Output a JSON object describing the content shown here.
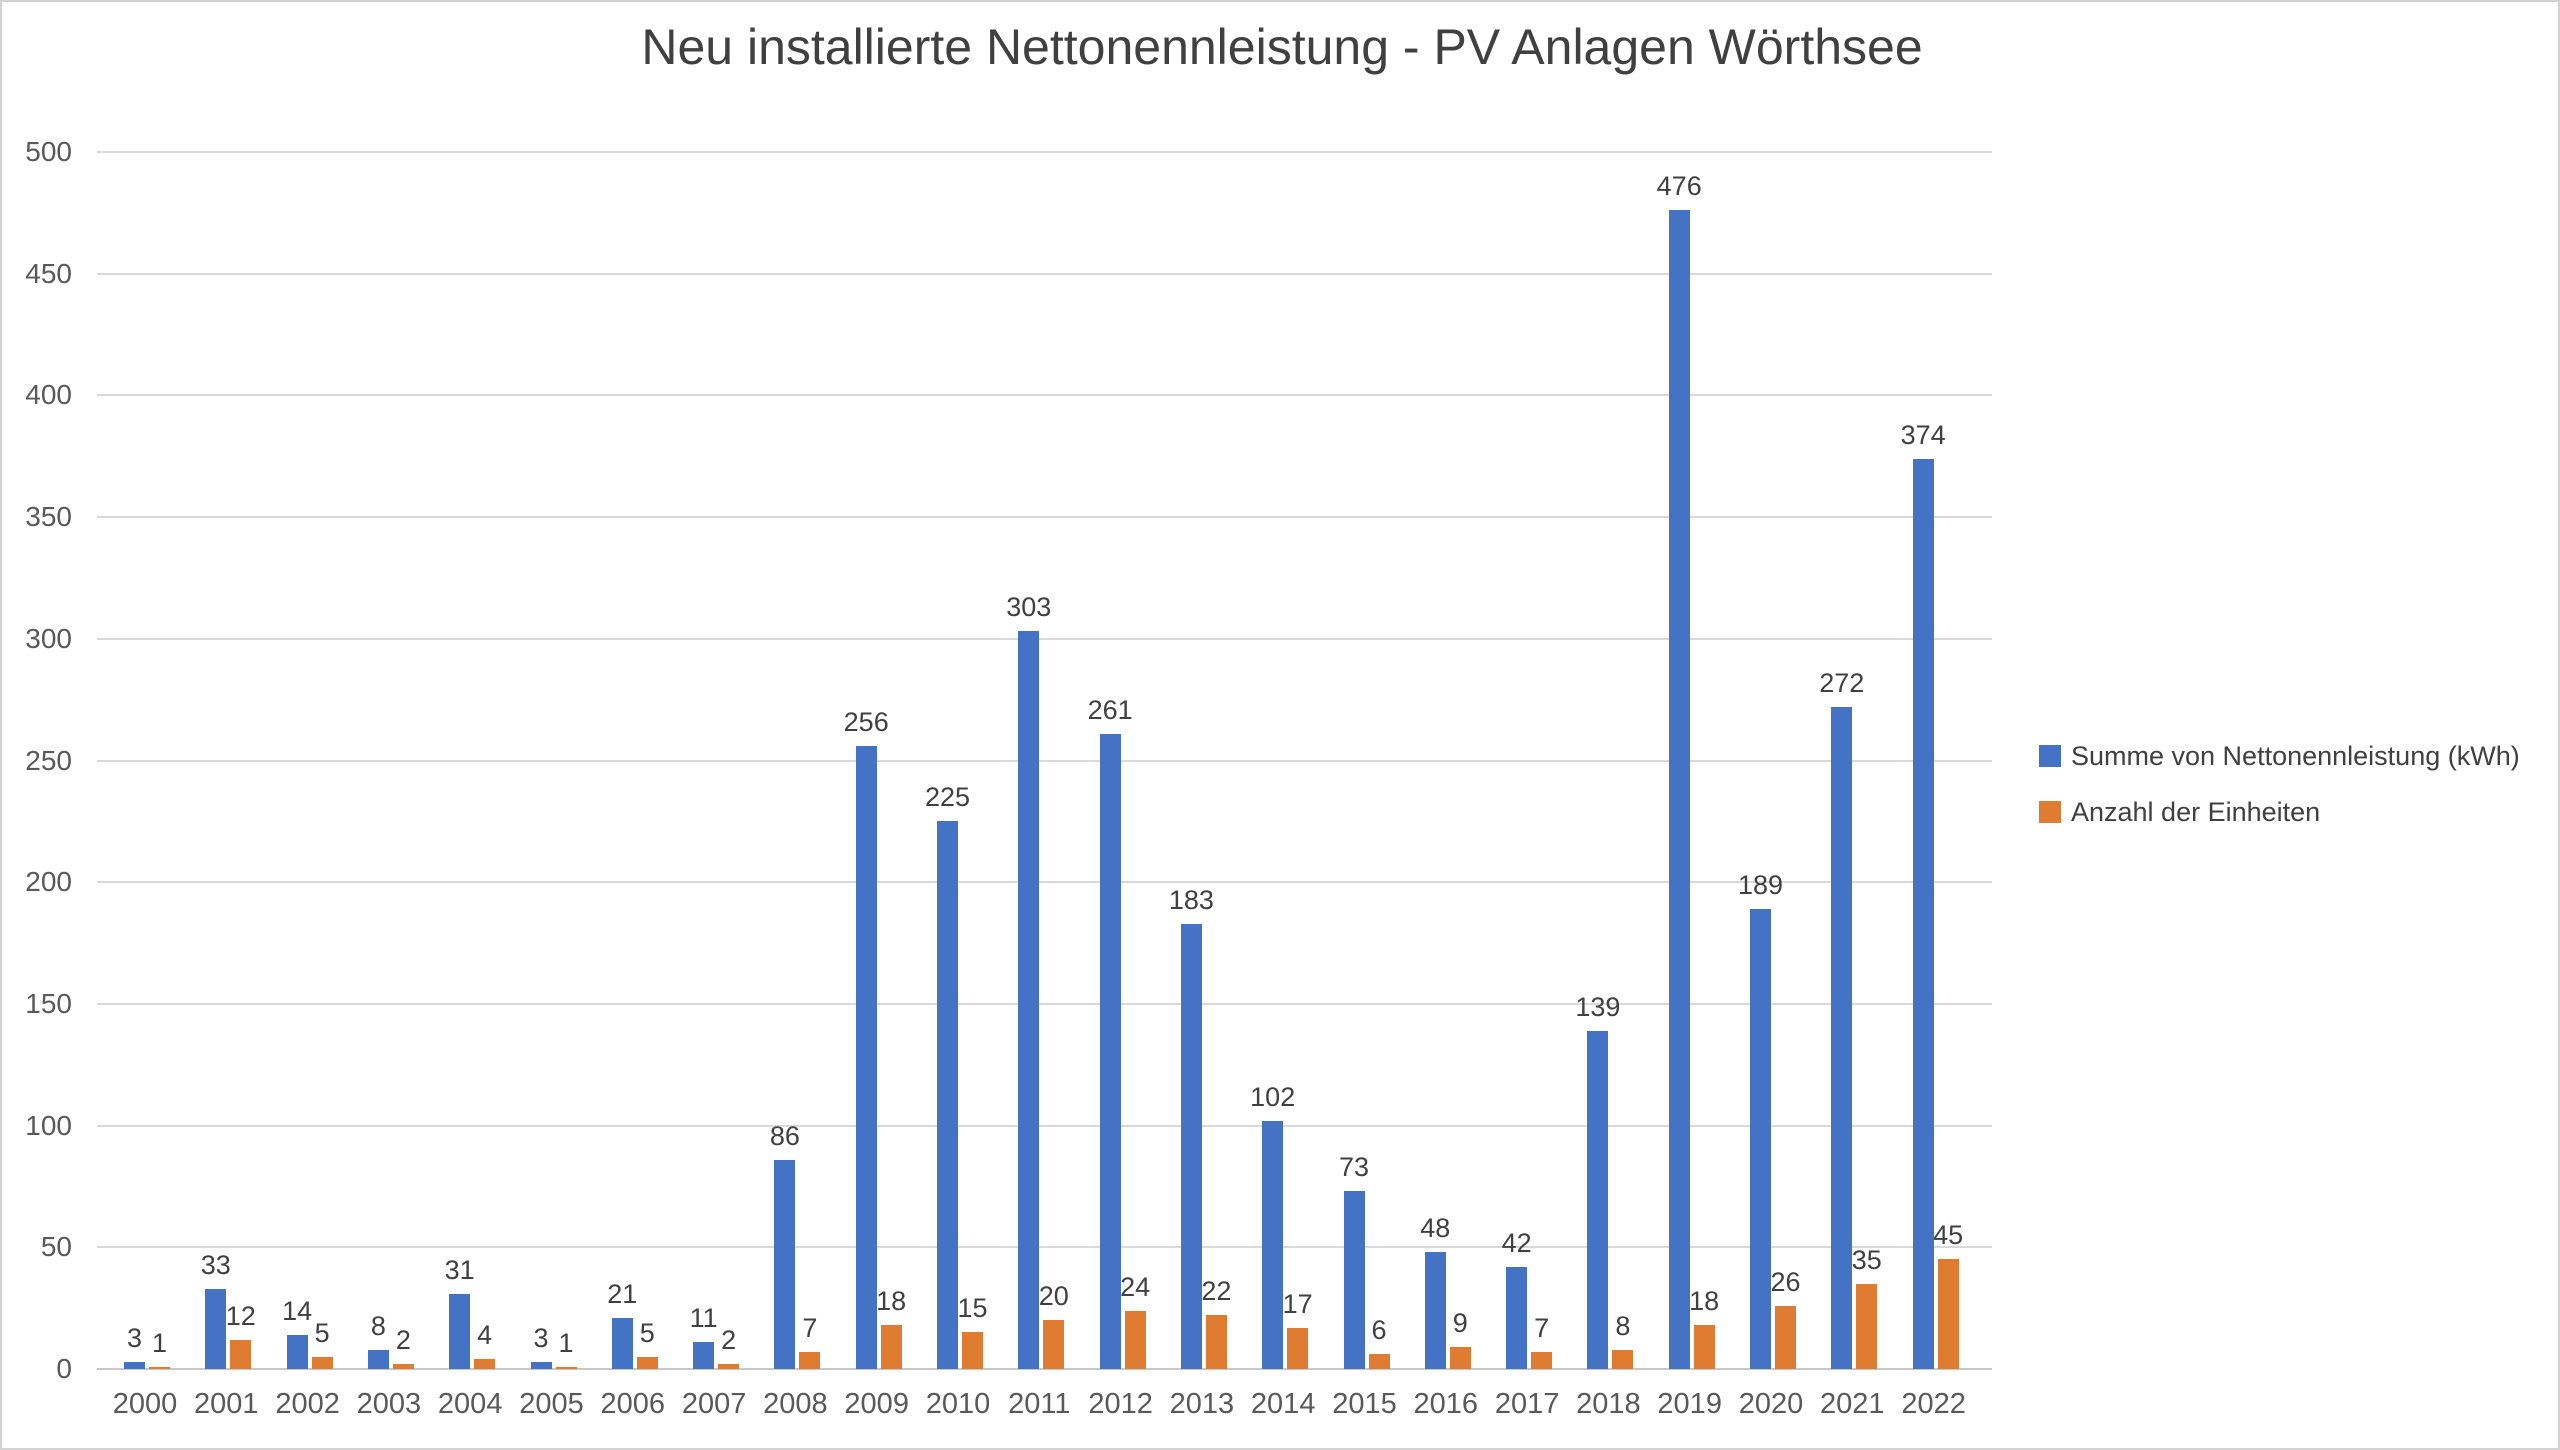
{
  "chart_data": {
    "type": "bar",
    "title": "Neu installierte Nettonennleistung - PV Anlagen Wörthsee",
    "categories": [
      "2000",
      "2001",
      "2002",
      "2003",
      "2004",
      "2005",
      "2006",
      "2007",
      "2008",
      "2009",
      "2010",
      "2011",
      "2012",
      "2013",
      "2014",
      "2015",
      "2016",
      "2017",
      "2018",
      "2019",
      "2020",
      "2021",
      "2022"
    ],
    "series": [
      {
        "name": "Summe von Nettonennleistung (kWh)",
        "color": "#4472c4",
        "values": [
          3,
          33,
          14,
          8,
          31,
          3,
          21,
          11,
          86,
          256,
          225,
          303,
          261,
          183,
          102,
          73,
          48,
          42,
          139,
          476,
          189,
          272,
          374
        ]
      },
      {
        "name": "Anzahl der Einheiten",
        "color": "#e07c31",
        "values": [
          1,
          12,
          5,
          2,
          4,
          1,
          5,
          2,
          7,
          18,
          15,
          20,
          24,
          22,
          17,
          6,
          9,
          7,
          8,
          18,
          26,
          35,
          45
        ]
      }
    ],
    "xlabel": "",
    "ylabel": "",
    "ylim": [
      0,
      500
    ],
    "ytick_step": 50,
    "yticks": [
      "0",
      "50",
      "100",
      "150",
      "200",
      "250",
      "300",
      "350",
      "400",
      "450",
      "500"
    ],
    "grid": true,
    "data_labels": true,
    "legend_position": "right"
  },
  "colors": {
    "title_text": "#404040",
    "axis_text": "#595959",
    "data_label_text": "#404040",
    "gridline": "#d9d9d9",
    "baseline": "#c8c8c8",
    "border": "#d2d2d2",
    "background": "#ffffff"
  }
}
